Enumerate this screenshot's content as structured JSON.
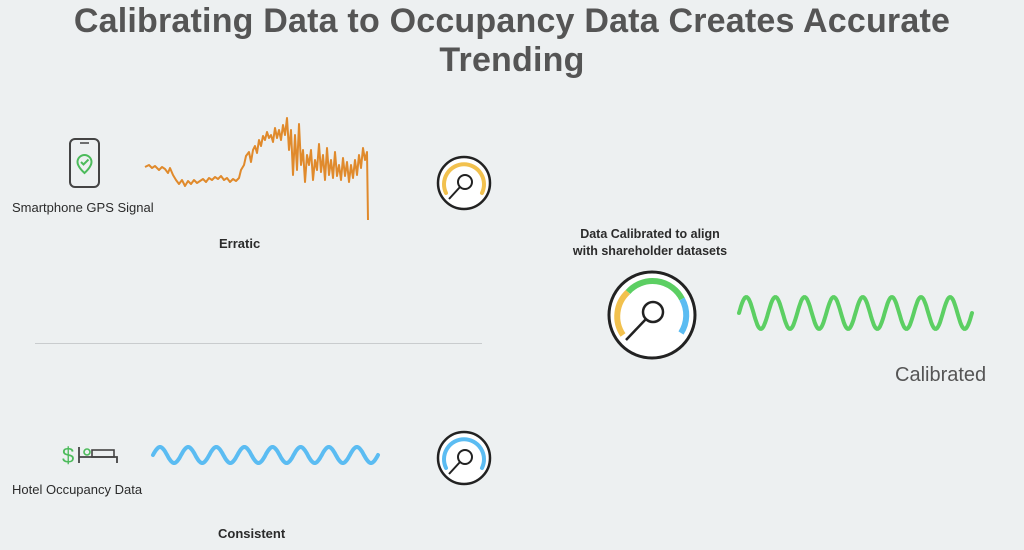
{
  "title": "Calibrating Data to Occupancy Data Creates Accurate Trending",
  "gps": {
    "label": "Smartphone GPS Signal",
    "descriptor": "Erratic",
    "icon": "smartphone-check-icon",
    "line_color": "#e08a2c",
    "gauge_color": "#f2c14e"
  },
  "hotel": {
    "label": "Hotel Occupancy Data",
    "descriptor": "Consistent",
    "icon": "money-bed-icon",
    "line_color": "#5bbcf2",
    "gauge_color": "#5bbcf2"
  },
  "result": {
    "heading_line1": "Data Calibrated to align",
    "heading_line2": "with shareholder datasets",
    "label": "Calibrated",
    "line_color": "#5ccf63",
    "gauge_colors": [
      "#f2c14e",
      "#5ccf63",
      "#5bbcf2"
    ]
  }
}
